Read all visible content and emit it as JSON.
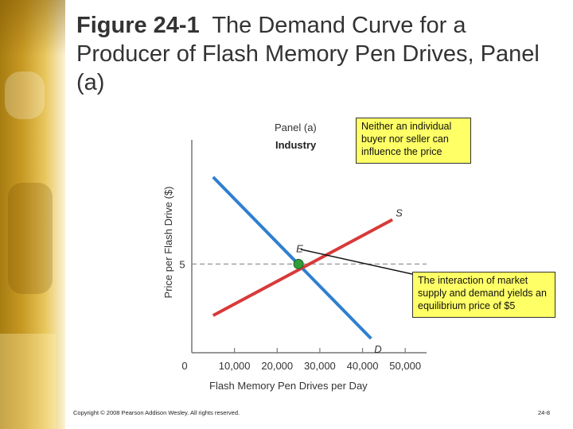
{
  "slide": {
    "title_fig": "Figure 24-1",
    "title_rest": "The Demand Curve for a Producer of Flash Memory Pen Drives, Panel (a)",
    "copyright": "Copyright © 2008 Pearson Addison Wesley. All rights reserved.",
    "page_number": "24-8"
  },
  "callouts": {
    "top": "Neither an individual buyer nor seller can influence the price",
    "bottom": "The interaction of market supply and demand yields an equilibrium price of $5"
  },
  "colors": {
    "demand": "#2f7fd0",
    "supply": "#d83a3a",
    "equilibrium_point": "#2f9e3a",
    "callout_fill": "#ffff66"
  },
  "chart_data": {
    "type": "line",
    "panel_label": "Panel (a)",
    "panel_sublabel": "Industry",
    "xlabel": "Flash Memory Pen Drives per Day",
    "ylabel": "Price per Flash Drive ($)",
    "x_ticks": [
      {
        "value": 0,
        "label": "0"
      },
      {
        "value": 10000,
        "label": "10,000"
      },
      {
        "value": 20000,
        "label": "20,000"
      },
      {
        "value": 30000,
        "label": "30,000"
      },
      {
        "value": 40000,
        "label": "40,000"
      },
      {
        "value": 50000,
        "label": "50,000"
      }
    ],
    "y_ticks": [
      {
        "value": 5,
        "label": "5"
      }
    ],
    "xlim": [
      0,
      55000
    ],
    "ylim": [
      0,
      12
    ],
    "series": [
      {
        "name": "D",
        "color": "#2f7fd0",
        "points": [
          [
            5000,
            9.9
          ],
          [
            42000,
            0.8
          ]
        ]
      },
      {
        "name": "S",
        "color": "#d83a3a",
        "points": [
          [
            5000,
            2.1
          ],
          [
            47000,
            7.5
          ]
        ]
      }
    ],
    "equilibrium": {
      "label": "E",
      "x": 25000,
      "y": 5
    },
    "reference_line_y": 5
  }
}
